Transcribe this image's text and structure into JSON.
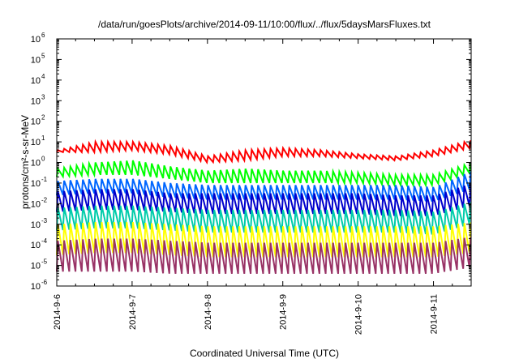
{
  "chart_data": {
    "type": "line",
    "title": "/data/run/goesPlots/archive/2014-09-11/10:00/flux/../flux/5daysMarsFluxes.txt",
    "xlabel": "Coordinated Universal Time (UTC)",
    "ylabel": "protons/cm²-s-sr-MeV",
    "yscale": "log",
    "ylim": [
      1e-06,
      1000000.0
    ],
    "xlim": [
      "2014-09-06",
      "2014-09-11 12:00"
    ],
    "x_ticks": [
      "2014-9-6",
      "2014-9-7",
      "2014-9-8",
      "2014-9-9",
      "2014-9-10",
      "2014-9-11"
    ],
    "y_ticks": [
      {
        "base": "10",
        "exp": "-6"
      },
      {
        "base": "10",
        "exp": "-5"
      },
      {
        "base": "10",
        "exp": "-4"
      },
      {
        "base": "10",
        "exp": "-3"
      },
      {
        "base": "10",
        "exp": "-2"
      },
      {
        "base": "10",
        "exp": "-1"
      },
      {
        "base": "10",
        "exp": "0"
      },
      {
        "base": "10",
        "exp": "1"
      },
      {
        "base": "10",
        "exp": "2"
      },
      {
        "base": "10",
        "exp": "3"
      },
      {
        "base": "10",
        "exp": "4"
      },
      {
        "base": "10",
        "exp": "5"
      },
      {
        "base": "10",
        "exp": "6"
      }
    ],
    "grid": false,
    "legend": "none",
    "series": [
      {
        "color": "#ff0000",
        "pattern": "sawtooth",
        "period_days": 0.083,
        "log_high": [
          0.6,
          1.0,
          1.0,
          0.8,
          0.3,
          0.6,
          0.7,
          0.6,
          0.4,
          0.3,
          0.6,
          1.1
        ],
        "log_low": [
          0.5,
          0.5,
          0.6,
          0.4,
          0.0,
          0.1,
          0.3,
          0.3,
          0.2,
          0.1,
          0.3,
          0.7
        ]
      },
      {
        "color": "#00ff00",
        "pattern": "sawtooth",
        "period_days": 0.083,
        "log_high": [
          -0.3,
          0.0,
          0.1,
          -0.2,
          -0.4,
          -0.3,
          -0.4,
          -0.4,
          -0.5,
          -0.6,
          -0.6,
          0.0
        ],
        "log_low": [
          -0.7,
          -0.6,
          -0.6,
          -0.8,
          -1.0,
          -1.0,
          -1.0,
          -1.0,
          -1.0,
          -1.1,
          -1.1,
          -0.5
        ]
      },
      {
        "color": "#0066ff",
        "pattern": "sawtooth",
        "period_days": 0.083,
        "log_high": [
          -0.9,
          -0.8,
          -0.8,
          -1.0,
          -1.1,
          -1.1,
          -1.1,
          -1.1,
          -1.1,
          -1.1,
          -1.2,
          -0.4
        ],
        "log_low": [
          -1.6,
          -1.5,
          -1.5,
          -1.7,
          -1.8,
          -1.8,
          -1.8,
          -1.8,
          -1.8,
          -1.8,
          -1.9,
          -1.3
        ]
      },
      {
        "color": "#0000cc",
        "pattern": "sawtooth",
        "period_days": 0.083,
        "log_high": [
          -1.4,
          -1.3,
          -1.3,
          -1.5,
          -1.5,
          -1.5,
          -1.5,
          -1.5,
          -1.5,
          -1.6,
          -1.6,
          -1.0
        ],
        "log_low": [
          -2.4,
          -2.3,
          -2.3,
          -2.4,
          -2.5,
          -2.5,
          -2.5,
          -2.5,
          -2.5,
          -2.6,
          -2.6,
          -2.1
        ]
      },
      {
        "color": "#00ccaa",
        "pattern": "sawtooth",
        "period_days": 0.083,
        "log_high": [
          -2.2,
          -2.1,
          -2.1,
          -2.2,
          -2.3,
          -2.3,
          -2.3,
          -2.3,
          -2.3,
          -2.3,
          -2.4,
          -1.9
        ],
        "log_low": [
          -3.3,
          -3.2,
          -3.2,
          -3.3,
          -3.4,
          -3.4,
          -3.4,
          -3.4,
          -3.4,
          -3.4,
          -3.5,
          -3.0
        ]
      },
      {
        "color": "#ffff00",
        "pattern": "sawtooth",
        "period_days": 0.083,
        "log_high": [
          -3.0,
          -2.9,
          -2.9,
          -3.0,
          -3.1,
          -3.1,
          -3.1,
          -3.1,
          -3.1,
          -3.1,
          -3.1,
          -2.9
        ],
        "log_low": [
          -4.5,
          -4.4,
          -4.4,
          -4.5,
          -4.6,
          -4.6,
          -4.6,
          -4.6,
          -4.6,
          -4.6,
          -4.6,
          -4.4
        ]
      },
      {
        "color": "#993366",
        "pattern": "sawtooth",
        "period_days": 0.083,
        "log_high": [
          -3.8,
          -3.7,
          -3.7,
          -3.8,
          -3.9,
          -3.9,
          -3.9,
          -3.9,
          -3.9,
          -3.9,
          -3.9,
          -3.6
        ],
        "log_low": [
          -5.3,
          -5.3,
          -5.3,
          -5.4,
          -5.4,
          -5.4,
          -5.4,
          -5.4,
          -5.4,
          -5.4,
          -5.4,
          -5.1
        ]
      }
    ]
  }
}
